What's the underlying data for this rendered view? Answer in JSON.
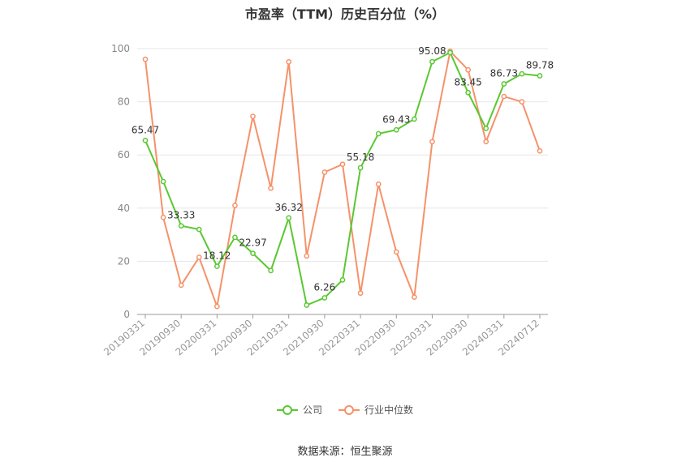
{
  "chart_data": {
    "type": "line",
    "title": "市盈率（TTM）历史百分位（%）",
    "x_tick_labels": [
      "20190331",
      "20190930",
      "20200331",
      "20200930",
      "20210331",
      "20210930",
      "20220331",
      "20220930",
      "20230331",
      "20230930",
      "20240331",
      "20240712"
    ],
    "x": [
      "20190331",
      "20190630",
      "20190930",
      "20191231",
      "20200331",
      "20200630",
      "20200930",
      "20201231",
      "20210331",
      "20210630",
      "20210930",
      "20211231",
      "20220331",
      "20220630",
      "20220930",
      "20221231",
      "20230331",
      "20230630",
      "20230930",
      "20231231",
      "20240331",
      "20240630",
      "20240712"
    ],
    "ylim": [
      0,
      100
    ],
    "y_ticks": [
      0,
      20,
      40,
      60,
      80,
      100
    ],
    "grid": true,
    "legend_position": "bottom",
    "series": [
      {
        "name": "公司",
        "color": "#5ac832",
        "values": [
          65.47,
          50.0,
          33.33,
          32.0,
          18.12,
          29.0,
          22.97,
          16.5,
          36.32,
          3.5,
          6.26,
          13.0,
          55.18,
          68.0,
          69.43,
          73.5,
          95.08,
          98.5,
          83.45,
          70.0,
          86.73,
          90.5,
          89.78
        ],
        "labels": {
          "0": "65.47",
          "2": "33.33",
          "4": "18.12",
          "6": "22.97",
          "8": "36.32",
          "10": "6.26",
          "12": "55.18",
          "14": "69.43",
          "16": "95.08",
          "18": "83.45",
          "20": "86.73",
          "22": "89.78"
        }
      },
      {
        "name": "行业中位数",
        "color": "#f5926a",
        "values": [
          96.0,
          36.5,
          11.0,
          21.5,
          3.0,
          41.0,
          74.5,
          47.5,
          95.0,
          22.0,
          53.5,
          56.5,
          8.0,
          49.0,
          23.5,
          6.5,
          65.0,
          99.0,
          92.0,
          65.0,
          82.0,
          80.0,
          61.5
        ]
      }
    ]
  },
  "source": "数据来源：恒生聚源"
}
